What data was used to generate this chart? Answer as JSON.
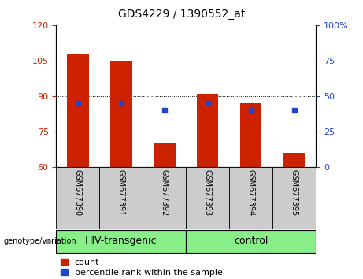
{
  "title": "GDS4229 / 1390552_at",
  "samples": [
    "GSM677390",
    "GSM677391",
    "GSM677392",
    "GSM677393",
    "GSM677394",
    "GSM677395"
  ],
  "bar_values": [
    108,
    105,
    70,
    91,
    87,
    66
  ],
  "bar_base": 60,
  "blue_marker_left": [
    87,
    87,
    84,
    87,
    84,
    84
  ],
  "ylim_left": [
    60,
    120
  ],
  "ylim_right": [
    0,
    100
  ],
  "yticks_left": [
    60,
    75,
    90,
    105,
    120
  ],
  "yticks_right": [
    0,
    25,
    50,
    75,
    100
  ],
  "bar_color": "#cc2200",
  "marker_color": "#2244cc",
  "group_labels": [
    "HIV-transgenic",
    "control"
  ],
  "group_ranges": [
    [
      0,
      3
    ],
    [
      3,
      6
    ]
  ],
  "group_color": "#88ee88",
  "label_count": "count",
  "label_percentile": "percentile rank within the sample",
  "genotype_label": "genotype/variation",
  "sample_bg_color": "#cccccc",
  "title_fontsize": 10,
  "tick_fontsize": 8,
  "legend_fontsize": 8,
  "group_label_fontsize": 9,
  "sample_label_fontsize": 7
}
